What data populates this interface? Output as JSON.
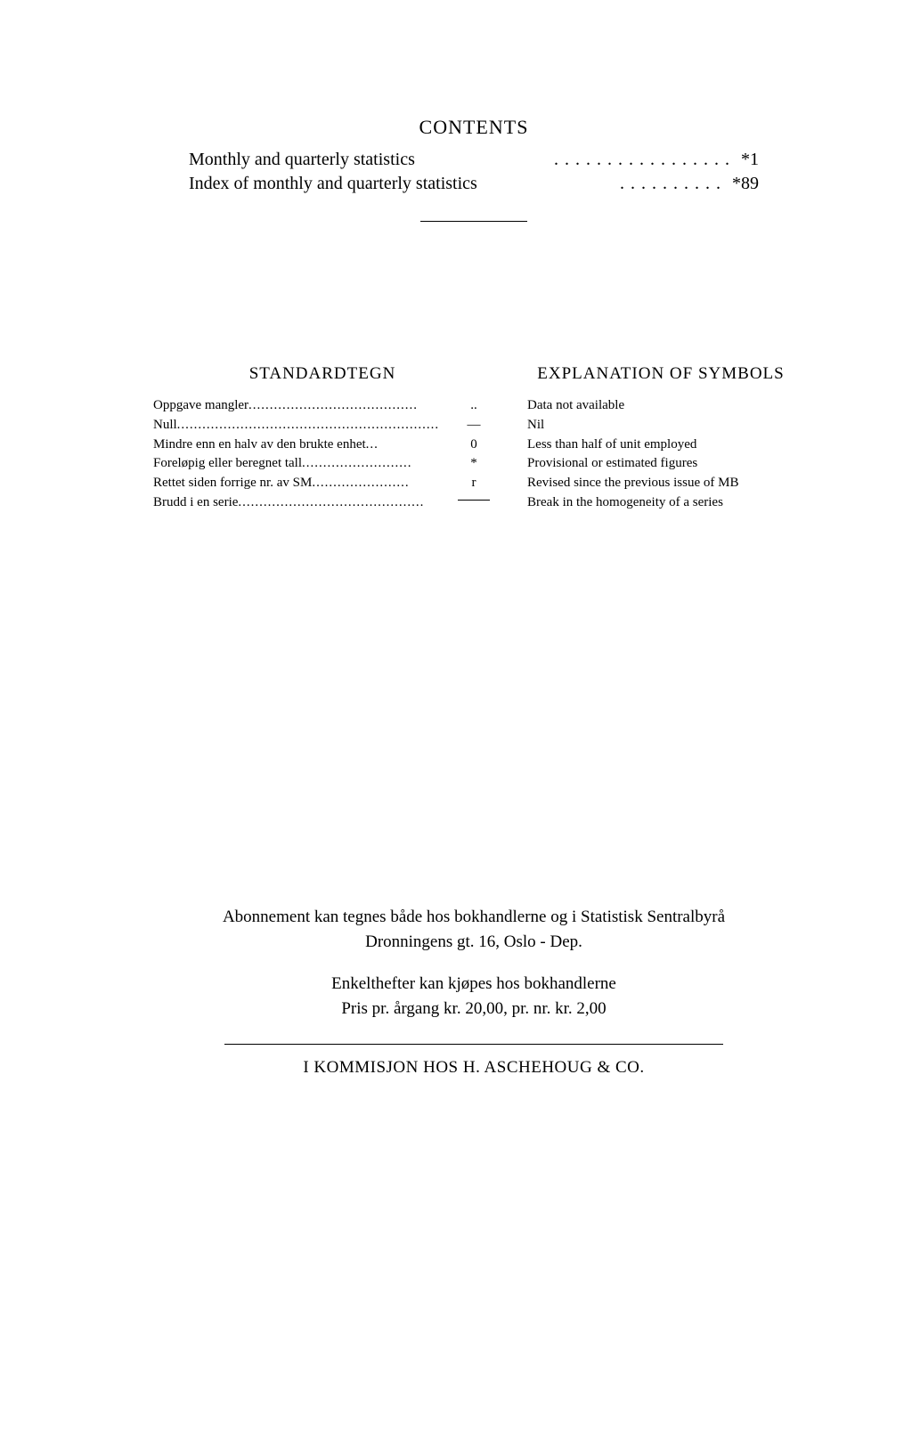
{
  "contents": {
    "heading": "CONTENTS",
    "items": [
      {
        "label": "Monthly and quarterly statistics",
        "dots": ". . . . . . . . . . . . . . . . .",
        "page": "*1"
      },
      {
        "label": "Index of monthly and quarterly statistics",
        "dots": ". . . . . . . . . .",
        "page": "*89"
      }
    ]
  },
  "symbols": {
    "left_heading": "STANDARDTEGN",
    "right_heading": "EXPLANATION OF SYMBOLS",
    "rows": [
      {
        "nor": "Oppgave mangler",
        "dots": "........................................",
        "sym": "..",
        "eng": "Data not available"
      },
      {
        "nor": "Null",
        "dots": "..............................................................",
        "sym": "—",
        "eng": "Nil"
      },
      {
        "nor": "Mindre enn en halv av den brukte enhet",
        "dots": " ...",
        "sym": "0",
        "eng": "Less than half of unit employed"
      },
      {
        "nor": "Foreløpig eller beregnet tall",
        "dots": "..........................",
        "sym": "*",
        "eng": "Provisional or estimated figures"
      },
      {
        "nor": "Rettet siden forrige nr. av SM",
        "dots": ".......................",
        "sym": "r",
        "eng": "Revised since the previous issue of MB"
      },
      {
        "nor": "Brudd i en serie",
        "dots": "............................................",
        "sym": "__break__",
        "eng": "Break in the homogeneity of a series"
      }
    ]
  },
  "subscription": {
    "line1a": "Abonnement kan tegnes både hos bokhandlerne og i Statistisk Sentralbyrå",
    "line1b": "Dronningens gt. 16, Oslo - Dep.",
    "line2a": "Enkelthefter kan kjøpes hos bokhandlerne",
    "line2b": "Pris pr. årgang kr. 20,00, pr. nr. kr. 2,00",
    "commission": "I KOMMISJON HOS H. ASCHEHOUG & CO."
  }
}
